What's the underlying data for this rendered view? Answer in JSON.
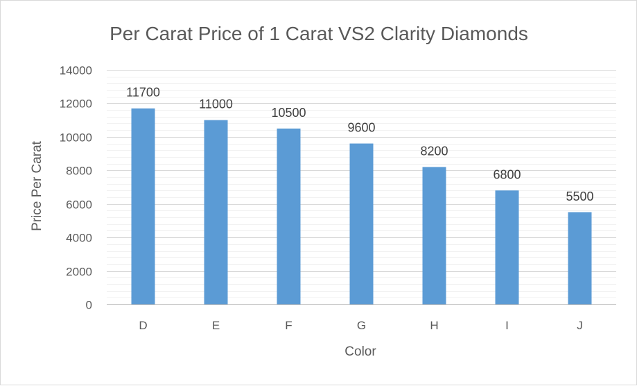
{
  "chart_data": {
    "type": "bar",
    "title": "Per Carat Price of 1 Carat VS2 Clarity Diamonds",
    "xlabel": "Color",
    "ylabel": "Price Per Carat",
    "categories": [
      "D",
      "E",
      "F",
      "G",
      "H",
      "I",
      "J"
    ],
    "series": [
      {
        "name": "Price Per Carat",
        "values": [
          11700,
          11000,
          10500,
          9600,
          8200,
          6800,
          5500
        ],
        "color": "#5b9bd5"
      }
    ],
    "ylim": [
      0,
      14000
    ],
    "yticks": [
      0,
      2000,
      4000,
      6000,
      8000,
      10000,
      12000,
      14000
    ],
    "major_grid_step": 2000,
    "minor_grid_step": 400,
    "grid": true,
    "legend": "none",
    "colors": {
      "major_grid": "#d9d9d9",
      "minor_grid": "#f2f2f2",
      "axis": "#bfbfbf"
    }
  }
}
